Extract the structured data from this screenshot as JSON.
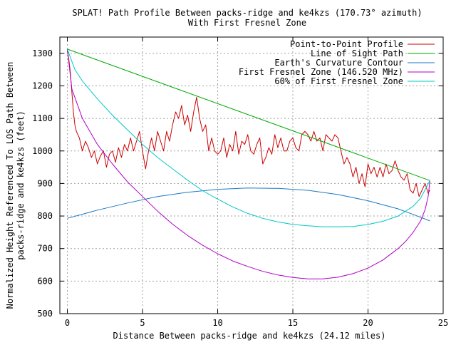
{
  "chart_data": {
    "type": "line",
    "title": "SPLAT! Path Profile Between packs-ridge and ke4kzs (170.73° azimuth)",
    "subtitle": "With First Fresnel Zone",
    "xlabel": "Distance Between packs-ridge and ke4kzs (24.12 miles)",
    "ylabel_lines": [
      "Normalized Height Referenced To LOS Path Between",
      "packs-ridge and ke4kzs (feet)"
    ],
    "xlim": [
      -0.5,
      25
    ],
    "ylim": [
      500,
      1350
    ],
    "x_ticks": [
      0,
      5,
      10,
      15,
      20,
      25
    ],
    "y_ticks": [
      500,
      600,
      700,
      800,
      900,
      1000,
      1100,
      1200,
      1300
    ],
    "x_tick_labels": [
      "0",
      "5",
      "10",
      "15",
      "20",
      "25"
    ],
    "y_tick_labels": [
      "500",
      "600",
      "700",
      "800",
      "900",
      "1000",
      "1100",
      "1200",
      "1300"
    ],
    "grid": true,
    "legend_position": "top-right",
    "series": [
      {
        "name": "Point-to-Point Profile",
        "color": "#cc0000",
        "x": [
          0,
          0.1,
          0.2,
          0.3,
          0.4,
          0.5,
          0.6,
          0.8,
          1.0,
          1.2,
          1.4,
          1.6,
          1.8,
          2.0,
          2.2,
          2.4,
          2.6,
          2.8,
          3.0,
          3.2,
          3.4,
          3.6,
          3.8,
          4.0,
          4.2,
          4.4,
          4.6,
          4.8,
          5.0,
          5.2,
          5.4,
          5.6,
          5.8,
          6.0,
          6.2,
          6.4,
          6.6,
          6.8,
          7.0,
          7.2,
          7.4,
          7.6,
          7.8,
          8.0,
          8.2,
          8.4,
          8.6,
          8.8,
          9.0,
          9.2,
          9.4,
          9.6,
          9.8,
          10.0,
          10.2,
          10.4,
          10.6,
          10.8,
          11.0,
          11.2,
          11.4,
          11.6,
          11.8,
          12.0,
          12.2,
          12.4,
          12.6,
          12.8,
          13.0,
          13.2,
          13.4,
          13.6,
          13.8,
          14.0,
          14.2,
          14.4,
          14.6,
          14.8,
          15.0,
          15.2,
          15.4,
          15.6,
          15.8,
          16.0,
          16.2,
          16.4,
          16.6,
          16.8,
          17.0,
          17.2,
          17.4,
          17.6,
          17.8,
          18.0,
          18.2,
          18.4,
          18.6,
          18.8,
          19.0,
          19.2,
          19.4,
          19.6,
          19.8,
          20.0,
          20.2,
          20.4,
          20.6,
          20.8,
          21.0,
          21.2,
          21.4,
          21.6,
          21.8,
          22.0,
          22.2,
          22.4,
          22.6,
          22.8,
          23.0,
          23.2,
          23.4,
          23.6,
          23.8,
          24.0,
          24.12
        ],
        "y": [
          1310,
          1280,
          1240,
          1180,
          1120,
          1080,
          1060,
          1040,
          1000,
          1030,
          1010,
          980,
          1000,
          960,
          985,
          1000,
          950,
          990,
          1000,
          965,
          1010,
          980,
          1020,
          1000,
          1040,
          1000,
          1030,
          1060,
          1000,
          945,
          1000,
          1040,
          1000,
          1060,
          1030,
          1000,
          1060,
          1030,
          1080,
          1120,
          1100,
          1140,
          1080,
          1110,
          1060,
          1120,
          1165,
          1100,
          1060,
          1080,
          1000,
          1040,
          1000,
          990,
          1000,
          1040,
          980,
          1020,
          1000,
          1060,
          990,
          1030,
          1020,
          1050,
          1000,
          990,
          1020,
          1040,
          960,
          980,
          1010,
          990,
          1050,
          1010,
          1040,
          1000,
          1000,
          1030,
          1040,
          1010,
          1000,
          1050,
          1060,
          1050,
          1030,
          1060,
          1030,
          1040,
          1000,
          1050,
          1040,
          1030,
          1050,
          1040,
          1000,
          960,
          980,
          960,
          920,
          950,
          900,
          930,
          890,
          960,
          930,
          950,
          920,
          950,
          920,
          960,
          930,
          940,
          970,
          940,
          920,
          910,
          930,
          880,
          870,
          900,
          860,
          880,
          900,
          870,
          880
        ]
      },
      {
        "name": "Line of Sight Path",
        "color": "#00aa00",
        "x": [
          0,
          24.12
        ],
        "y": [
          1313,
          909
        ]
      },
      {
        "name": "Earth's Curvature Contour",
        "color": "#1a7ac4",
        "x": [
          0,
          2,
          4,
          6,
          8,
          10,
          12,
          14,
          16,
          18,
          20,
          22,
          23,
          24.12
        ],
        "y": [
          793,
          818,
          840,
          860,
          873,
          882,
          886,
          885,
          879,
          866,
          847,
          822,
          805,
          785
        ]
      },
      {
        "name": "First Fresnel Zone (146.520 MHz)",
        "color": "#b000c8",
        "x": [
          0,
          0.3,
          1,
          2,
          3,
          4,
          5,
          6,
          7,
          8,
          9,
          10,
          11,
          12,
          13,
          14,
          15,
          16,
          17,
          18,
          19,
          20,
          21,
          22,
          22.5,
          23,
          23.5,
          23.8,
          24.0,
          24.12
        ],
        "y": [
          1313,
          1190,
          1100,
          1020,
          960,
          905,
          860,
          815,
          775,
          740,
          710,
          684,
          662,
          645,
          630,
          619,
          611,
          607,
          607,
          612,
          623,
          640,
          665,
          700,
          722,
          750,
          785,
          820,
          860,
          909
        ]
      },
      {
        "name": "60% of First Fresnel Zone",
        "color": "#00c8c8",
        "x": [
          0,
          0.5,
          1,
          2,
          3,
          4,
          5,
          6,
          7,
          8,
          9,
          10,
          11,
          12,
          13,
          14,
          15,
          16,
          17,
          18,
          19,
          20,
          21,
          22,
          23,
          23.5,
          24.12
        ],
        "y": [
          1313,
          1250,
          1215,
          1160,
          1110,
          1065,
          1020,
          980,
          945,
          910,
          878,
          852,
          828,
          808,
          793,
          782,
          774,
          770,
          767,
          767,
          768,
          774,
          784,
          800,
          830,
          855,
          909
        ]
      }
    ]
  }
}
